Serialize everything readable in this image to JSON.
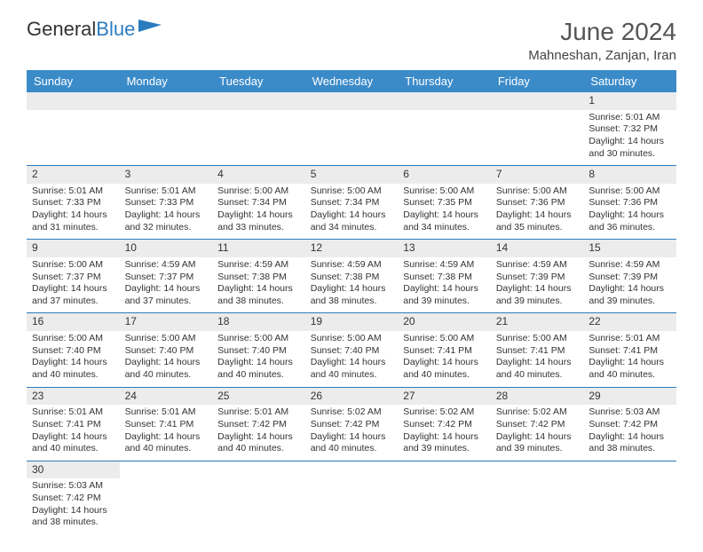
{
  "logo": {
    "part1": "General",
    "part2": "Blue"
  },
  "title": "June 2024",
  "subtitle": "Mahneshan, Zanjan, Iran",
  "colors": {
    "header_bg": "#3b8bc9",
    "header_text": "#ffffff",
    "daynum_bg": "#ececec",
    "border": "#2b7bbf",
    "logo_blue": "#2b7bbf",
    "text": "#333333"
  },
  "weekdays": [
    "Sunday",
    "Monday",
    "Tuesday",
    "Wednesday",
    "Thursday",
    "Friday",
    "Saturday"
  ],
  "weeks": [
    [
      null,
      null,
      null,
      null,
      null,
      null,
      {
        "n": "1",
        "l1": "Sunrise: 5:01 AM",
        "l2": "Sunset: 7:32 PM",
        "l3": "Daylight: 14 hours",
        "l4": "and 30 minutes."
      }
    ],
    [
      {
        "n": "2",
        "l1": "Sunrise: 5:01 AM",
        "l2": "Sunset: 7:33 PM",
        "l3": "Daylight: 14 hours",
        "l4": "and 31 minutes."
      },
      {
        "n": "3",
        "l1": "Sunrise: 5:01 AM",
        "l2": "Sunset: 7:33 PM",
        "l3": "Daylight: 14 hours",
        "l4": "and 32 minutes."
      },
      {
        "n": "4",
        "l1": "Sunrise: 5:00 AM",
        "l2": "Sunset: 7:34 PM",
        "l3": "Daylight: 14 hours",
        "l4": "and 33 minutes."
      },
      {
        "n": "5",
        "l1": "Sunrise: 5:00 AM",
        "l2": "Sunset: 7:34 PM",
        "l3": "Daylight: 14 hours",
        "l4": "and 34 minutes."
      },
      {
        "n": "6",
        "l1": "Sunrise: 5:00 AM",
        "l2": "Sunset: 7:35 PM",
        "l3": "Daylight: 14 hours",
        "l4": "and 34 minutes."
      },
      {
        "n": "7",
        "l1": "Sunrise: 5:00 AM",
        "l2": "Sunset: 7:36 PM",
        "l3": "Daylight: 14 hours",
        "l4": "and 35 minutes."
      },
      {
        "n": "8",
        "l1": "Sunrise: 5:00 AM",
        "l2": "Sunset: 7:36 PM",
        "l3": "Daylight: 14 hours",
        "l4": "and 36 minutes."
      }
    ],
    [
      {
        "n": "9",
        "l1": "Sunrise: 5:00 AM",
        "l2": "Sunset: 7:37 PM",
        "l3": "Daylight: 14 hours",
        "l4": "and 37 minutes."
      },
      {
        "n": "10",
        "l1": "Sunrise: 4:59 AM",
        "l2": "Sunset: 7:37 PM",
        "l3": "Daylight: 14 hours",
        "l4": "and 37 minutes."
      },
      {
        "n": "11",
        "l1": "Sunrise: 4:59 AM",
        "l2": "Sunset: 7:38 PM",
        "l3": "Daylight: 14 hours",
        "l4": "and 38 minutes."
      },
      {
        "n": "12",
        "l1": "Sunrise: 4:59 AM",
        "l2": "Sunset: 7:38 PM",
        "l3": "Daylight: 14 hours",
        "l4": "and 38 minutes."
      },
      {
        "n": "13",
        "l1": "Sunrise: 4:59 AM",
        "l2": "Sunset: 7:38 PM",
        "l3": "Daylight: 14 hours",
        "l4": "and 39 minutes."
      },
      {
        "n": "14",
        "l1": "Sunrise: 4:59 AM",
        "l2": "Sunset: 7:39 PM",
        "l3": "Daylight: 14 hours",
        "l4": "and 39 minutes."
      },
      {
        "n": "15",
        "l1": "Sunrise: 4:59 AM",
        "l2": "Sunset: 7:39 PM",
        "l3": "Daylight: 14 hours",
        "l4": "and 39 minutes."
      }
    ],
    [
      {
        "n": "16",
        "l1": "Sunrise: 5:00 AM",
        "l2": "Sunset: 7:40 PM",
        "l3": "Daylight: 14 hours",
        "l4": "and 40 minutes."
      },
      {
        "n": "17",
        "l1": "Sunrise: 5:00 AM",
        "l2": "Sunset: 7:40 PM",
        "l3": "Daylight: 14 hours",
        "l4": "and 40 minutes."
      },
      {
        "n": "18",
        "l1": "Sunrise: 5:00 AM",
        "l2": "Sunset: 7:40 PM",
        "l3": "Daylight: 14 hours",
        "l4": "and 40 minutes."
      },
      {
        "n": "19",
        "l1": "Sunrise: 5:00 AM",
        "l2": "Sunset: 7:40 PM",
        "l3": "Daylight: 14 hours",
        "l4": "and 40 minutes."
      },
      {
        "n": "20",
        "l1": "Sunrise: 5:00 AM",
        "l2": "Sunset: 7:41 PM",
        "l3": "Daylight: 14 hours",
        "l4": "and 40 minutes."
      },
      {
        "n": "21",
        "l1": "Sunrise: 5:00 AM",
        "l2": "Sunset: 7:41 PM",
        "l3": "Daylight: 14 hours",
        "l4": "and 40 minutes."
      },
      {
        "n": "22",
        "l1": "Sunrise: 5:01 AM",
        "l2": "Sunset: 7:41 PM",
        "l3": "Daylight: 14 hours",
        "l4": "and 40 minutes."
      }
    ],
    [
      {
        "n": "23",
        "l1": "Sunrise: 5:01 AM",
        "l2": "Sunset: 7:41 PM",
        "l3": "Daylight: 14 hours",
        "l4": "and 40 minutes."
      },
      {
        "n": "24",
        "l1": "Sunrise: 5:01 AM",
        "l2": "Sunset: 7:41 PM",
        "l3": "Daylight: 14 hours",
        "l4": "and 40 minutes."
      },
      {
        "n": "25",
        "l1": "Sunrise: 5:01 AM",
        "l2": "Sunset: 7:42 PM",
        "l3": "Daylight: 14 hours",
        "l4": "and 40 minutes."
      },
      {
        "n": "26",
        "l1": "Sunrise: 5:02 AM",
        "l2": "Sunset: 7:42 PM",
        "l3": "Daylight: 14 hours",
        "l4": "and 40 minutes."
      },
      {
        "n": "27",
        "l1": "Sunrise: 5:02 AM",
        "l2": "Sunset: 7:42 PM",
        "l3": "Daylight: 14 hours",
        "l4": "and 39 minutes."
      },
      {
        "n": "28",
        "l1": "Sunrise: 5:02 AM",
        "l2": "Sunset: 7:42 PM",
        "l3": "Daylight: 14 hours",
        "l4": "and 39 minutes."
      },
      {
        "n": "29",
        "l1": "Sunrise: 5:03 AM",
        "l2": "Sunset: 7:42 PM",
        "l3": "Daylight: 14 hours",
        "l4": "and 38 minutes."
      }
    ],
    [
      {
        "n": "30",
        "l1": "Sunrise: 5:03 AM",
        "l2": "Sunset: 7:42 PM",
        "l3": "Daylight: 14 hours",
        "l4": "and 38 minutes."
      },
      null,
      null,
      null,
      null,
      null,
      null
    ]
  ]
}
